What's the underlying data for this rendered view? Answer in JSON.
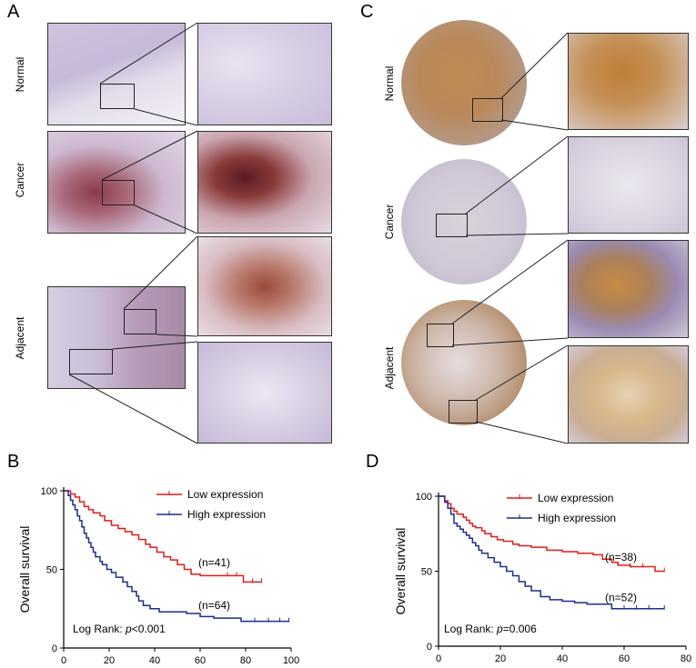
{
  "figure": {
    "panels": {
      "A": {
        "letter": "A",
        "rows": [
          "Normal",
          "Cancer",
          "Adjacent"
        ]
      },
      "C": {
        "letter": "C",
        "rows": [
          "Normal",
          "Cancer",
          "Adjacent"
        ]
      }
    },
    "colors": {
      "low": "#e21b1b",
      "high": "#1f2d8a",
      "he_pink": "#c9b7d6",
      "brown_stain": "#b06a2c"
    }
  },
  "chart_data": [
    {
      "panel": "B",
      "type": "line",
      "ylabel": "Overall survival",
      "xlabel": "",
      "xlim": [
        0,
        100
      ],
      "ylim": [
        0,
        100
      ],
      "xticks": [
        0,
        20,
        40,
        60,
        80,
        100
      ],
      "yticks": [
        0,
        50,
        100
      ],
      "legend_position": "top-right",
      "annotation": "Log Rank:",
      "pvalue": "p<0.001",
      "series": [
        {
          "name": "Low expression",
          "count_label": "(n=41)",
          "color": "#e21b1b",
          "x": [
            0,
            3,
            5,
            7,
            9,
            11,
            13,
            16,
            18,
            21,
            24,
            27,
            30,
            33,
            36,
            38,
            41,
            44,
            47,
            50,
            53,
            56,
            60,
            63,
            66,
            70,
            72,
            76,
            79,
            83,
            87
          ],
          "y": [
            100,
            98,
            96,
            93,
            90,
            88,
            86,
            84,
            81,
            78,
            76,
            74,
            72,
            69,
            66,
            64,
            61,
            58,
            56,
            53,
            50,
            47,
            46,
            46,
            46,
            46,
            46,
            46,
            42,
            42,
            42
          ]
        },
        {
          "name": "High expression",
          "count_label": "(n=64)",
          "color": "#1f2d8a",
          "x": [
            0,
            2,
            3,
            4,
            5,
            6,
            7,
            8,
            9,
            10,
            11,
            12,
            13,
            14,
            16,
            17,
            19,
            21,
            23,
            26,
            28,
            30,
            32,
            33,
            35,
            38,
            42,
            48,
            54,
            60,
            66,
            72,
            78,
            84,
            90,
            95,
            99
          ],
          "y": [
            100,
            97,
            94,
            91,
            88,
            84,
            81,
            77,
            73,
            70,
            67,
            64,
            61,
            58,
            55,
            53,
            50,
            48,
            45,
            42,
            39,
            36,
            33,
            30,
            27,
            25,
            23,
            23,
            22,
            20,
            19,
            19,
            17,
            17,
            17,
            17,
            17
          ]
        }
      ]
    },
    {
      "panel": "D",
      "type": "line",
      "ylabel": "Overall survival",
      "xlabel": "",
      "xlim": [
        0,
        80
      ],
      "ylim": [
        0,
        100
      ],
      "xticks": [
        0,
        20,
        40,
        60,
        80
      ],
      "yticks": [
        0,
        50,
        100
      ],
      "legend_position": "top-right",
      "annotation": "Log Rank:",
      "pvalue": "p=0.006",
      "series": [
        {
          "name": "Low expression",
          "count_label": "(n=38)",
          "color": "#e21b1b",
          "x": [
            0,
            2,
            3,
            4,
            5,
            6,
            8,
            9,
            10,
            11,
            12,
            14,
            15,
            17,
            19,
            21,
            24,
            26,
            30,
            35,
            40,
            45,
            50,
            53,
            56,
            58,
            62,
            66,
            70,
            73
          ],
          "y": [
            100,
            97,
            95,
            92,
            90,
            88,
            86,
            84,
            82,
            80,
            79,
            77,
            75,
            73,
            71,
            70,
            68,
            67,
            66,
            64,
            63,
            62,
            61,
            58,
            56,
            54,
            53,
            53,
            50,
            50
          ]
        },
        {
          "name": "High expression",
          "count_label": "(n=52)",
          "color": "#1f2d8a",
          "x": [
            0,
            2,
            3,
            4,
            5,
            6,
            7,
            8,
            9,
            10,
            11,
            12,
            13,
            14,
            16,
            18,
            20,
            22,
            24,
            26,
            28,
            30,
            33,
            36,
            40,
            44,
            48,
            52,
            56,
            60,
            64,
            68,
            73
          ],
          "y": [
            100,
            96,
            92,
            88,
            82,
            80,
            78,
            76,
            74,
            72,
            69,
            67,
            64,
            62,
            59,
            56,
            53,
            50,
            47,
            43,
            40,
            37,
            33,
            31,
            30,
            29,
            28,
            28,
            25,
            25,
            25,
            25,
            25
          ]
        }
      ]
    }
  ]
}
